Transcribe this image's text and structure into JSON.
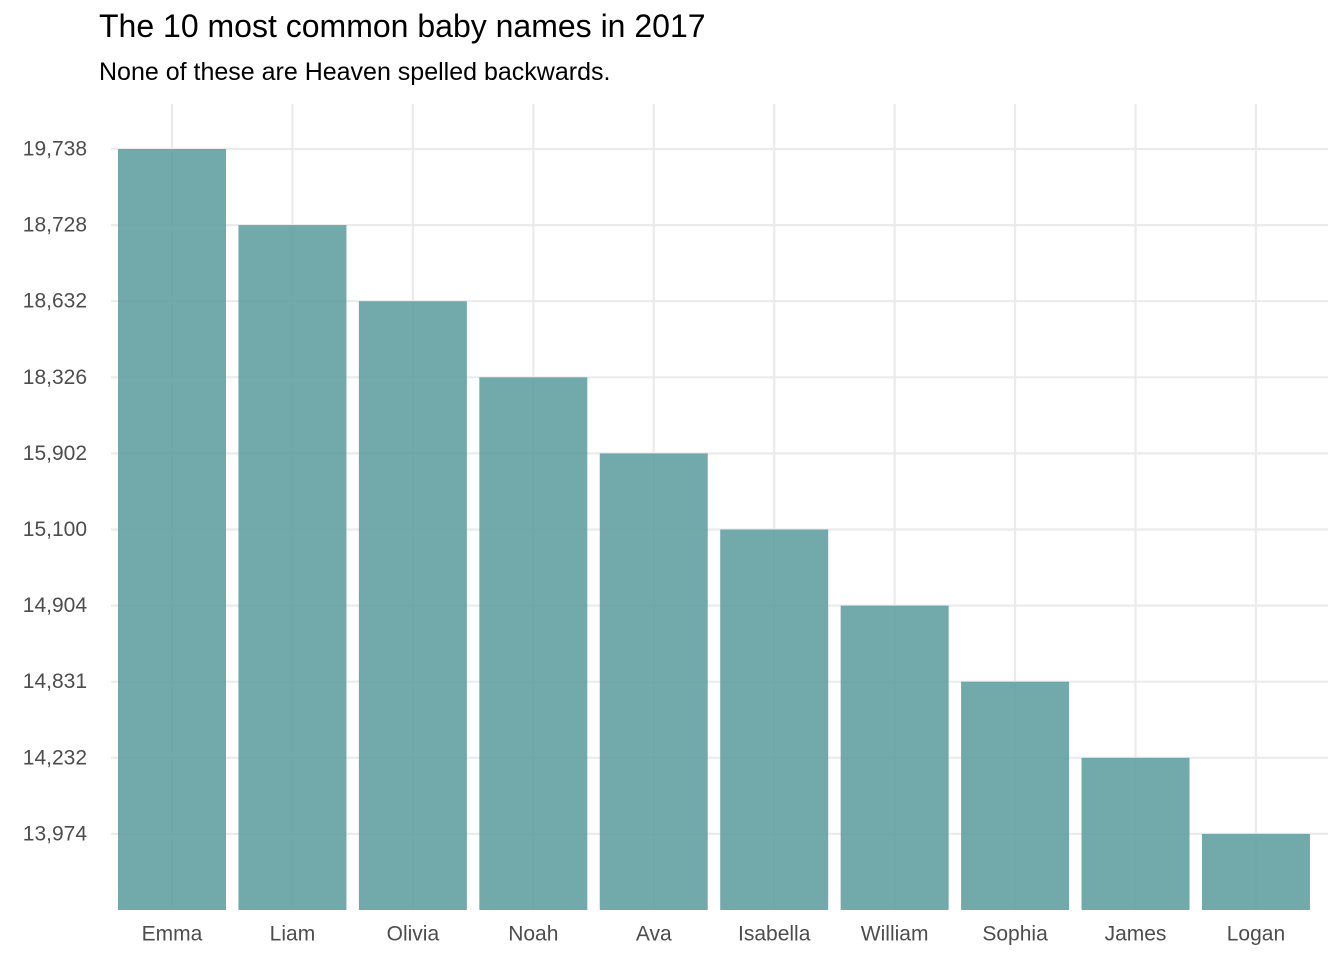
{
  "chart_data": {
    "type": "bar",
    "title": "The 10 most common baby names in 2017",
    "subtitle": "None of these are Heaven spelled backwards.",
    "xlabel": "",
    "ylabel": "",
    "categories": [
      "Emma",
      "Liam",
      "Olivia",
      "Noah",
      "Ava",
      "Isabella",
      "William",
      "Sophia",
      "James",
      "Logan"
    ],
    "values": [
      19738,
      18728,
      18632,
      18326,
      15902,
      15100,
      14904,
      14831,
      14232,
      13974
    ],
    "y_scale": "ordinal (each tick is one of the values, ranked)",
    "yticks": [
      "19,738",
      "18,728",
      "18,632",
      "18,326",
      "15,902",
      "15,100",
      "14,904",
      "14,831",
      "14,232",
      "13,974"
    ],
    "grid": true,
    "legend": "none",
    "bar_color": "#5f9ea0",
    "grid_color": "#ebebeb",
    "tick_label_color": "#4d4d4d"
  }
}
